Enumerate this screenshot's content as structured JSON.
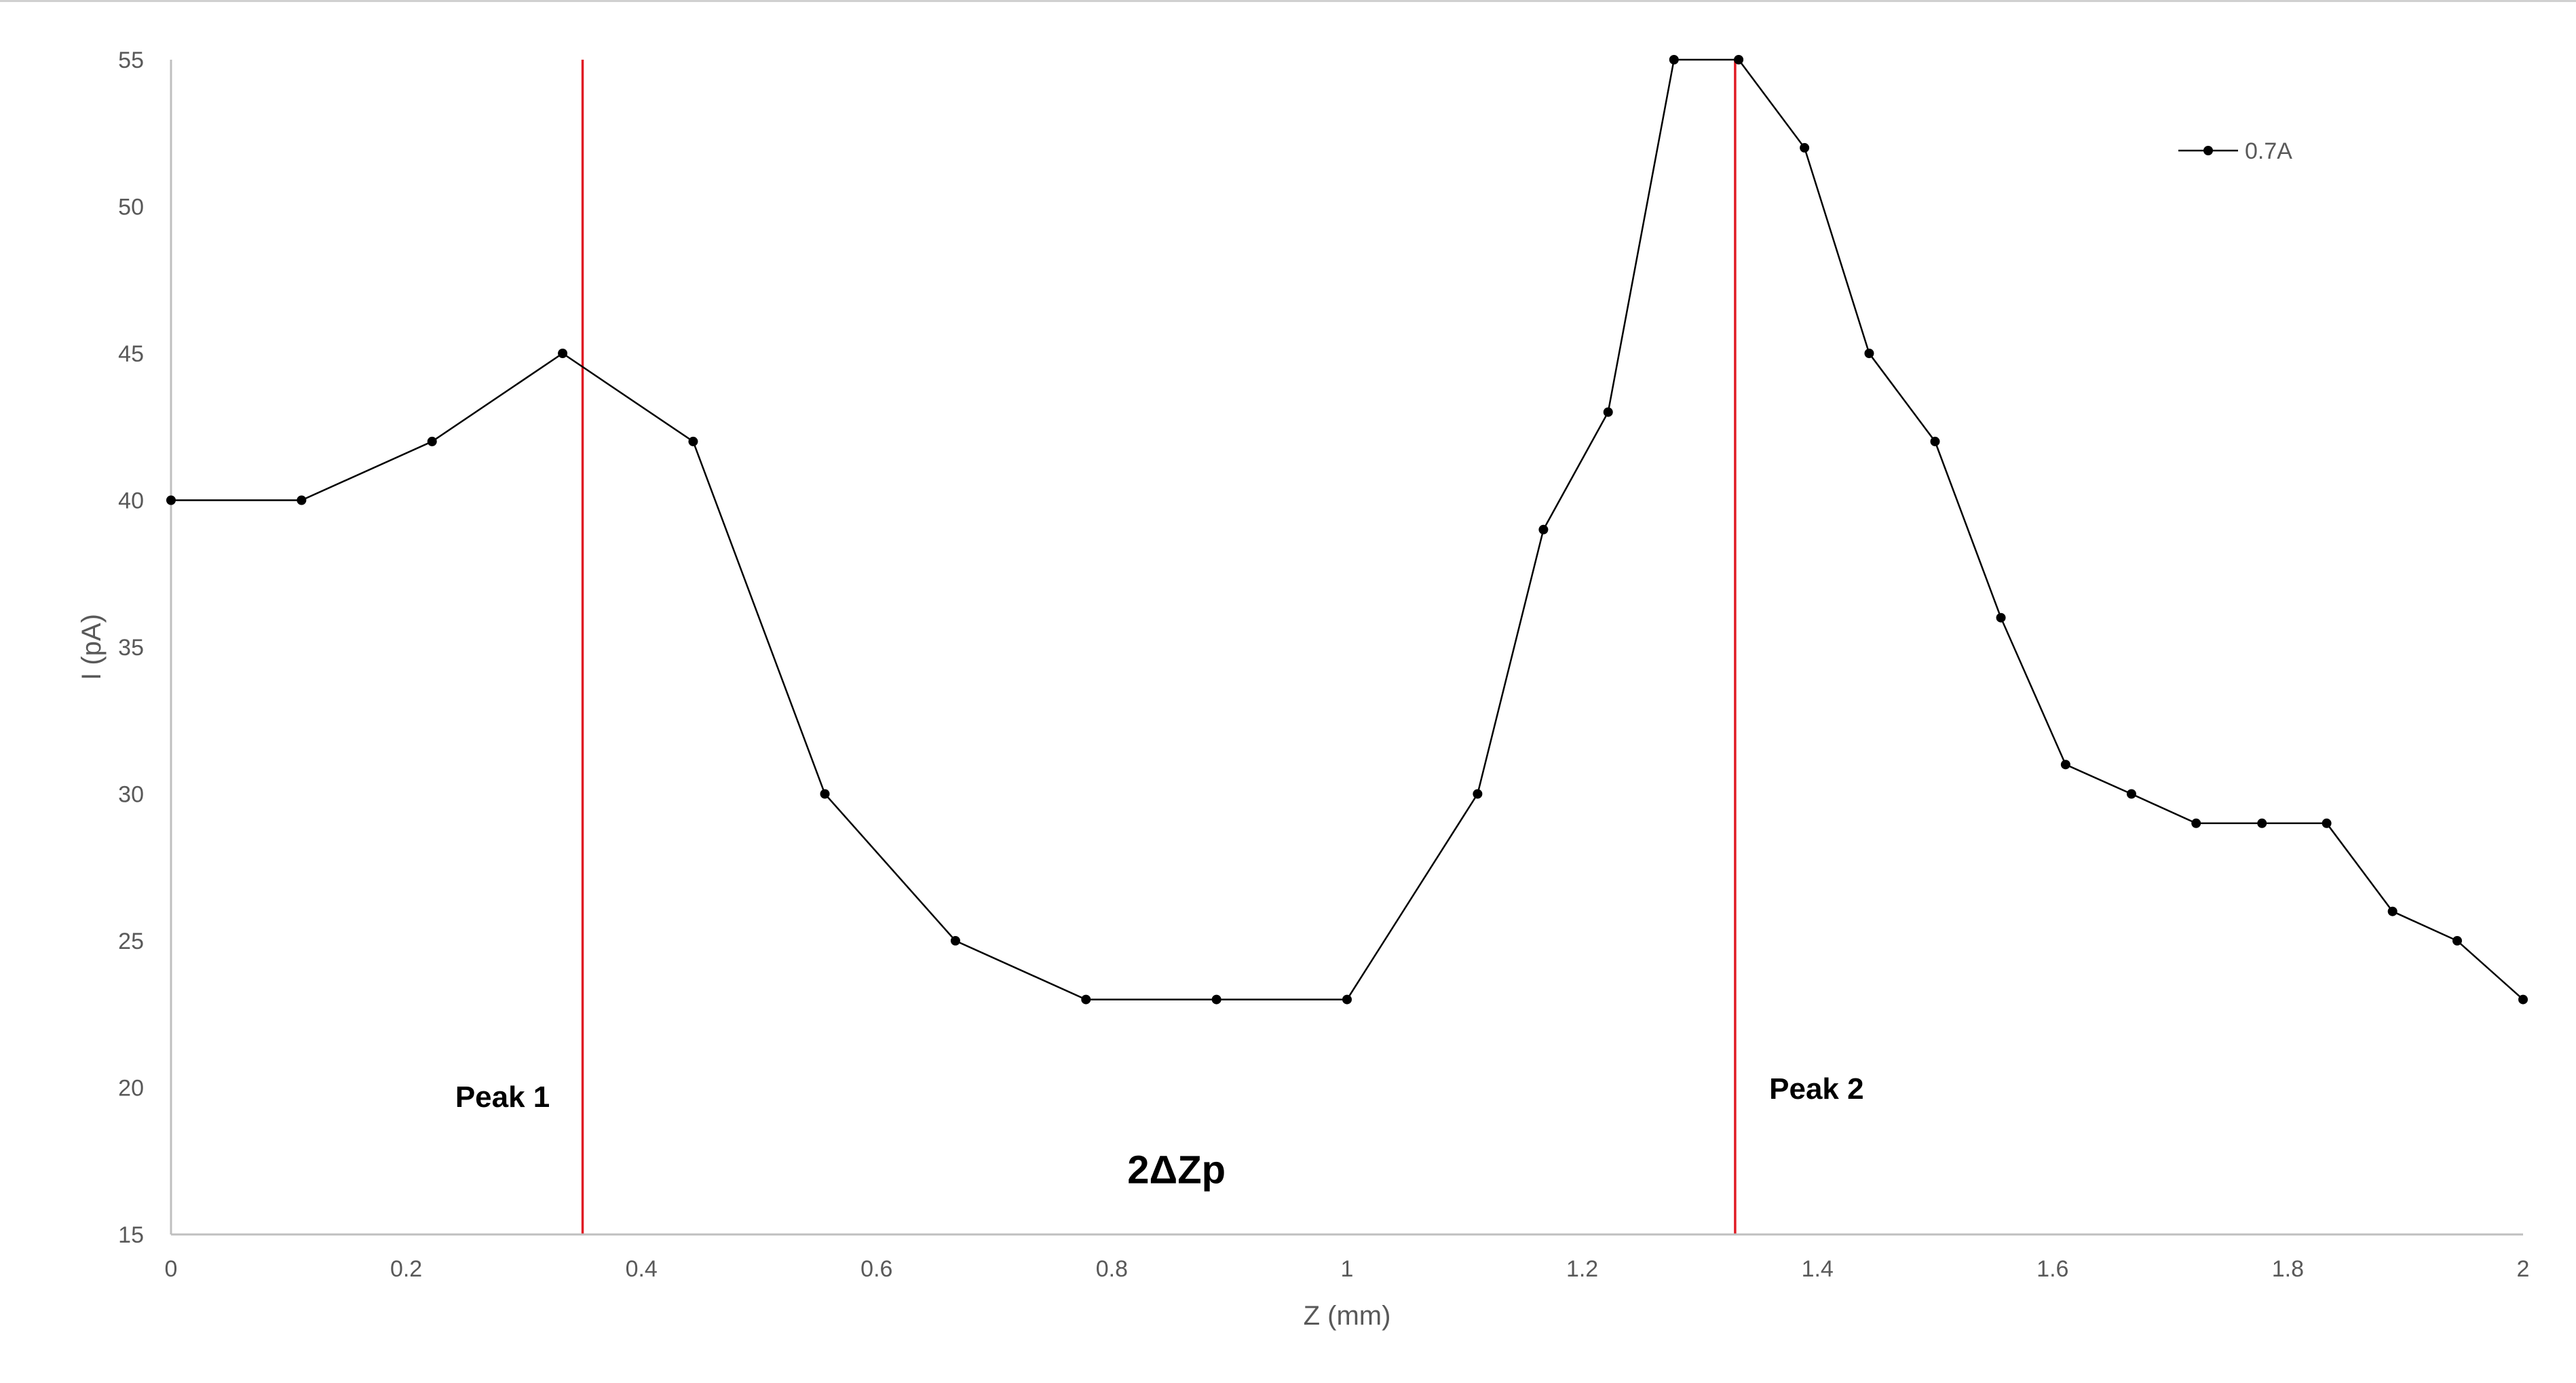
{
  "chart_data": {
    "type": "line",
    "xlabel": "Z (mm)",
    "ylabel": "I (pA)",
    "xlim": [
      0,
      2
    ],
    "ylim": [
      15,
      55
    ],
    "xticks": [
      "0",
      "0.2",
      "0.4",
      "0.6",
      "0.8",
      "1",
      "1.2",
      "1.4",
      "1.6",
      "1.8",
      "2"
    ],
    "xtick_values": [
      0,
      0.2,
      0.4,
      0.6,
      0.8,
      1,
      1.2,
      1.4,
      1.6,
      1.8,
      2
    ],
    "yticks": [
      "15",
      "20",
      "25",
      "30",
      "35",
      "40",
      "45",
      "50",
      "55"
    ],
    "ytick_values": [
      15,
      20,
      25,
      30,
      35,
      40,
      45,
      50,
      55
    ],
    "grid": false,
    "legend_position": "top-right",
    "series": [
      {
        "name": "0.7A",
        "color": "#000000",
        "marker": "circle",
        "x": [
          0,
          0.111,
          0.222,
          0.333,
          0.444,
          0.556,
          0.667,
          0.778,
          0.889,
          1.0,
          1.111,
          1.167,
          1.222,
          1.278,
          1.333,
          1.389,
          1.444,
          1.5,
          1.556,
          1.611,
          1.667,
          1.722,
          1.778,
          1.833,
          1.889,
          1.944,
          2.0
        ],
        "y": [
          40,
          40,
          42,
          45,
          42,
          30,
          25,
          23,
          23,
          23,
          30,
          39,
          43,
          55,
          55,
          52,
          45,
          42,
          36,
          31,
          30,
          29,
          29,
          29,
          26,
          25,
          23
        ]
      }
    ],
    "reference_lines": [
      {
        "label": "Peak 1",
        "x": 0.35,
        "color": "#e01b24"
      },
      {
        "label": "Peak 2",
        "x": 1.33,
        "color": "#e01b24"
      }
    ],
    "annotations": [
      {
        "text": "2ΔZp",
        "x": 0.855,
        "y": 17.2
      }
    ]
  }
}
